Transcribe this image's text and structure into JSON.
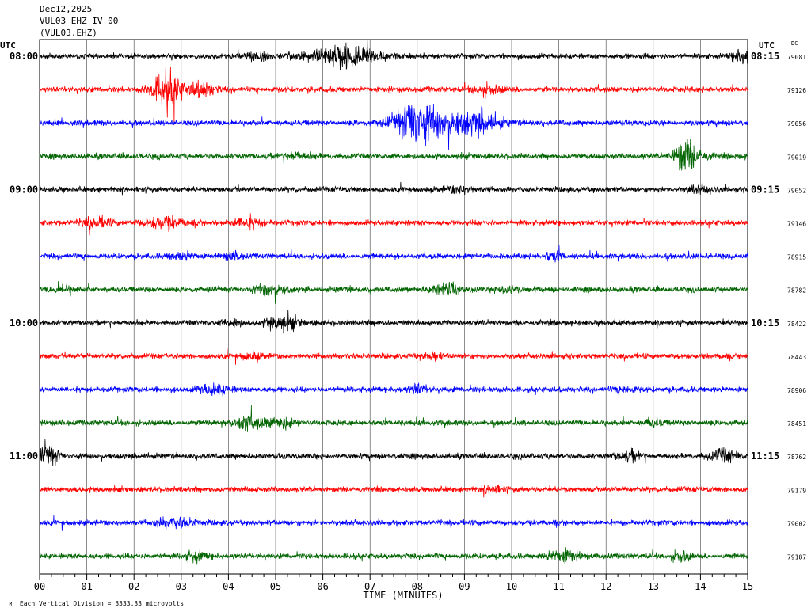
{
  "header": {
    "date": "Dec12,2025",
    "station": "VUL03 EHZ IV 00",
    "channel": "(VUL03.EHZ)"
  },
  "left_axis_title": "UTC",
  "right_axis_title": "UTC",
  "dc_label": "DC",
  "footer": {
    "scale_note": "Each Vertical Division = 3333.33 microvolts",
    "small_mark": "M"
  },
  "colors": {
    "black": "#000000",
    "red": "#ff0000",
    "blue": "#0000ff",
    "green": "#006400",
    "grid": "#000000"
  },
  "chart_data": {
    "type": "line",
    "title": "VUL03 EHZ IV 00",
    "xlabel": "TIME (MINUTES)",
    "x_ticks": [
      "00",
      "01",
      "02",
      "03",
      "04",
      "05",
      "06",
      "07",
      "08",
      "09",
      "10",
      "11",
      "12",
      "13",
      "14",
      "15"
    ],
    "xlim": [
      0,
      15
    ],
    "traces": [
      {
        "left": "08:00",
        "right": "08:15",
        "dc": "79081",
        "color": "black",
        "events": [
          [
            4.6,
            0.5,
            0.4
          ],
          [
            6.5,
            2.2,
            0.6
          ],
          [
            14.9,
            1.2,
            0.2
          ]
        ]
      },
      {
        "left": "",
        "right": "",
        "dc": "79126",
        "color": "red",
        "events": [
          [
            2.7,
            3.6,
            0.3
          ],
          [
            3.45,
            1.3,
            0.3
          ],
          [
            9.5,
            0.8,
            0.3
          ]
        ]
      },
      {
        "left": "",
        "right": "",
        "dc": "79056",
        "color": "blue",
        "events": [
          [
            7.9,
            2.8,
            0.3
          ],
          [
            8.4,
            2.4,
            0.8
          ],
          [
            9.4,
            1.3,
            0.4
          ]
        ]
      },
      {
        "left": "",
        "right": "",
        "dc": "79019",
        "color": "green",
        "events": [
          [
            13.65,
            2.5,
            0.2
          ],
          [
            13.9,
            1.0,
            0.3
          ],
          [
            5.4,
            0.6,
            0.3
          ]
        ]
      },
      {
        "left": "09:00",
        "right": "09:15",
        "dc": "79052",
        "color": "black",
        "events": [
          [
            8.9,
            0.6,
            0.3
          ],
          [
            14.0,
            0.5,
            0.3
          ]
        ]
      },
      {
        "left": "",
        "right": "",
        "dc": "79146",
        "color": "red",
        "events": [
          [
            1.2,
            0.9,
            0.3
          ],
          [
            2.6,
            1.1,
            0.4
          ],
          [
            4.4,
            0.9,
            0.3
          ]
        ]
      },
      {
        "left": "",
        "right": "",
        "dc": "78915",
        "color": "blue",
        "events": [
          [
            4.1,
            0.6,
            0.2
          ],
          [
            10.9,
            0.8,
            0.2
          ],
          [
            3.0,
            0.5,
            0.3
          ]
        ]
      },
      {
        "left": "",
        "right": "",
        "dc": "78782",
        "color": "green",
        "events": [
          [
            0.5,
            0.9,
            0.2
          ],
          [
            4.9,
            1.0,
            0.3
          ],
          [
            8.6,
            0.9,
            0.3
          ],
          [
            9.9,
            0.8,
            0.2
          ]
        ]
      },
      {
        "left": "10:00",
        "right": "10:15",
        "dc": "78422",
        "color": "black",
        "events": [
          [
            5.15,
            1.3,
            0.3
          ],
          [
            4.1,
            0.6,
            0.2
          ]
        ]
      },
      {
        "left": "",
        "right": "",
        "dc": "78443",
        "color": "red",
        "events": [
          [
            4.5,
            0.6,
            0.2
          ],
          [
            8.3,
            0.6,
            0.2
          ]
        ]
      },
      {
        "left": "",
        "right": "",
        "dc": "78906",
        "color": "blue",
        "events": [
          [
            3.7,
            0.9,
            0.3
          ],
          [
            8.0,
            0.8,
            0.2
          ],
          [
            12.4,
            0.6,
            0.2
          ]
        ]
      },
      {
        "left": "",
        "right": "",
        "dc": "78451",
        "color": "green",
        "events": [
          [
            4.4,
            1.2,
            0.3
          ],
          [
            5.1,
            0.9,
            0.3
          ],
          [
            13.0,
            0.6,
            0.2
          ]
        ]
      },
      {
        "left": "11:00",
        "right": "11:15",
        "dc": "78762",
        "color": "black",
        "events": [
          [
            0.2,
            2.0,
            0.2
          ],
          [
            12.5,
            0.8,
            0.3
          ],
          [
            14.5,
            1.1,
            0.3
          ]
        ]
      },
      {
        "left": "",
        "right": "",
        "dc": "79179",
        "color": "red",
        "events": [
          [
            9.6,
            0.6,
            0.2
          ]
        ]
      },
      {
        "left": "",
        "right": "",
        "dc": "79002",
        "color": "blue",
        "events": [
          [
            3.0,
            0.7,
            0.3
          ],
          [
            2.6,
            0.6,
            0.2
          ]
        ]
      },
      {
        "left": "",
        "right": "",
        "dc": "79187",
        "color": "green",
        "events": [
          [
            3.3,
            0.9,
            0.2
          ],
          [
            11.1,
            1.1,
            0.3
          ],
          [
            13.6,
            0.8,
            0.2
          ]
        ]
      }
    ]
  }
}
